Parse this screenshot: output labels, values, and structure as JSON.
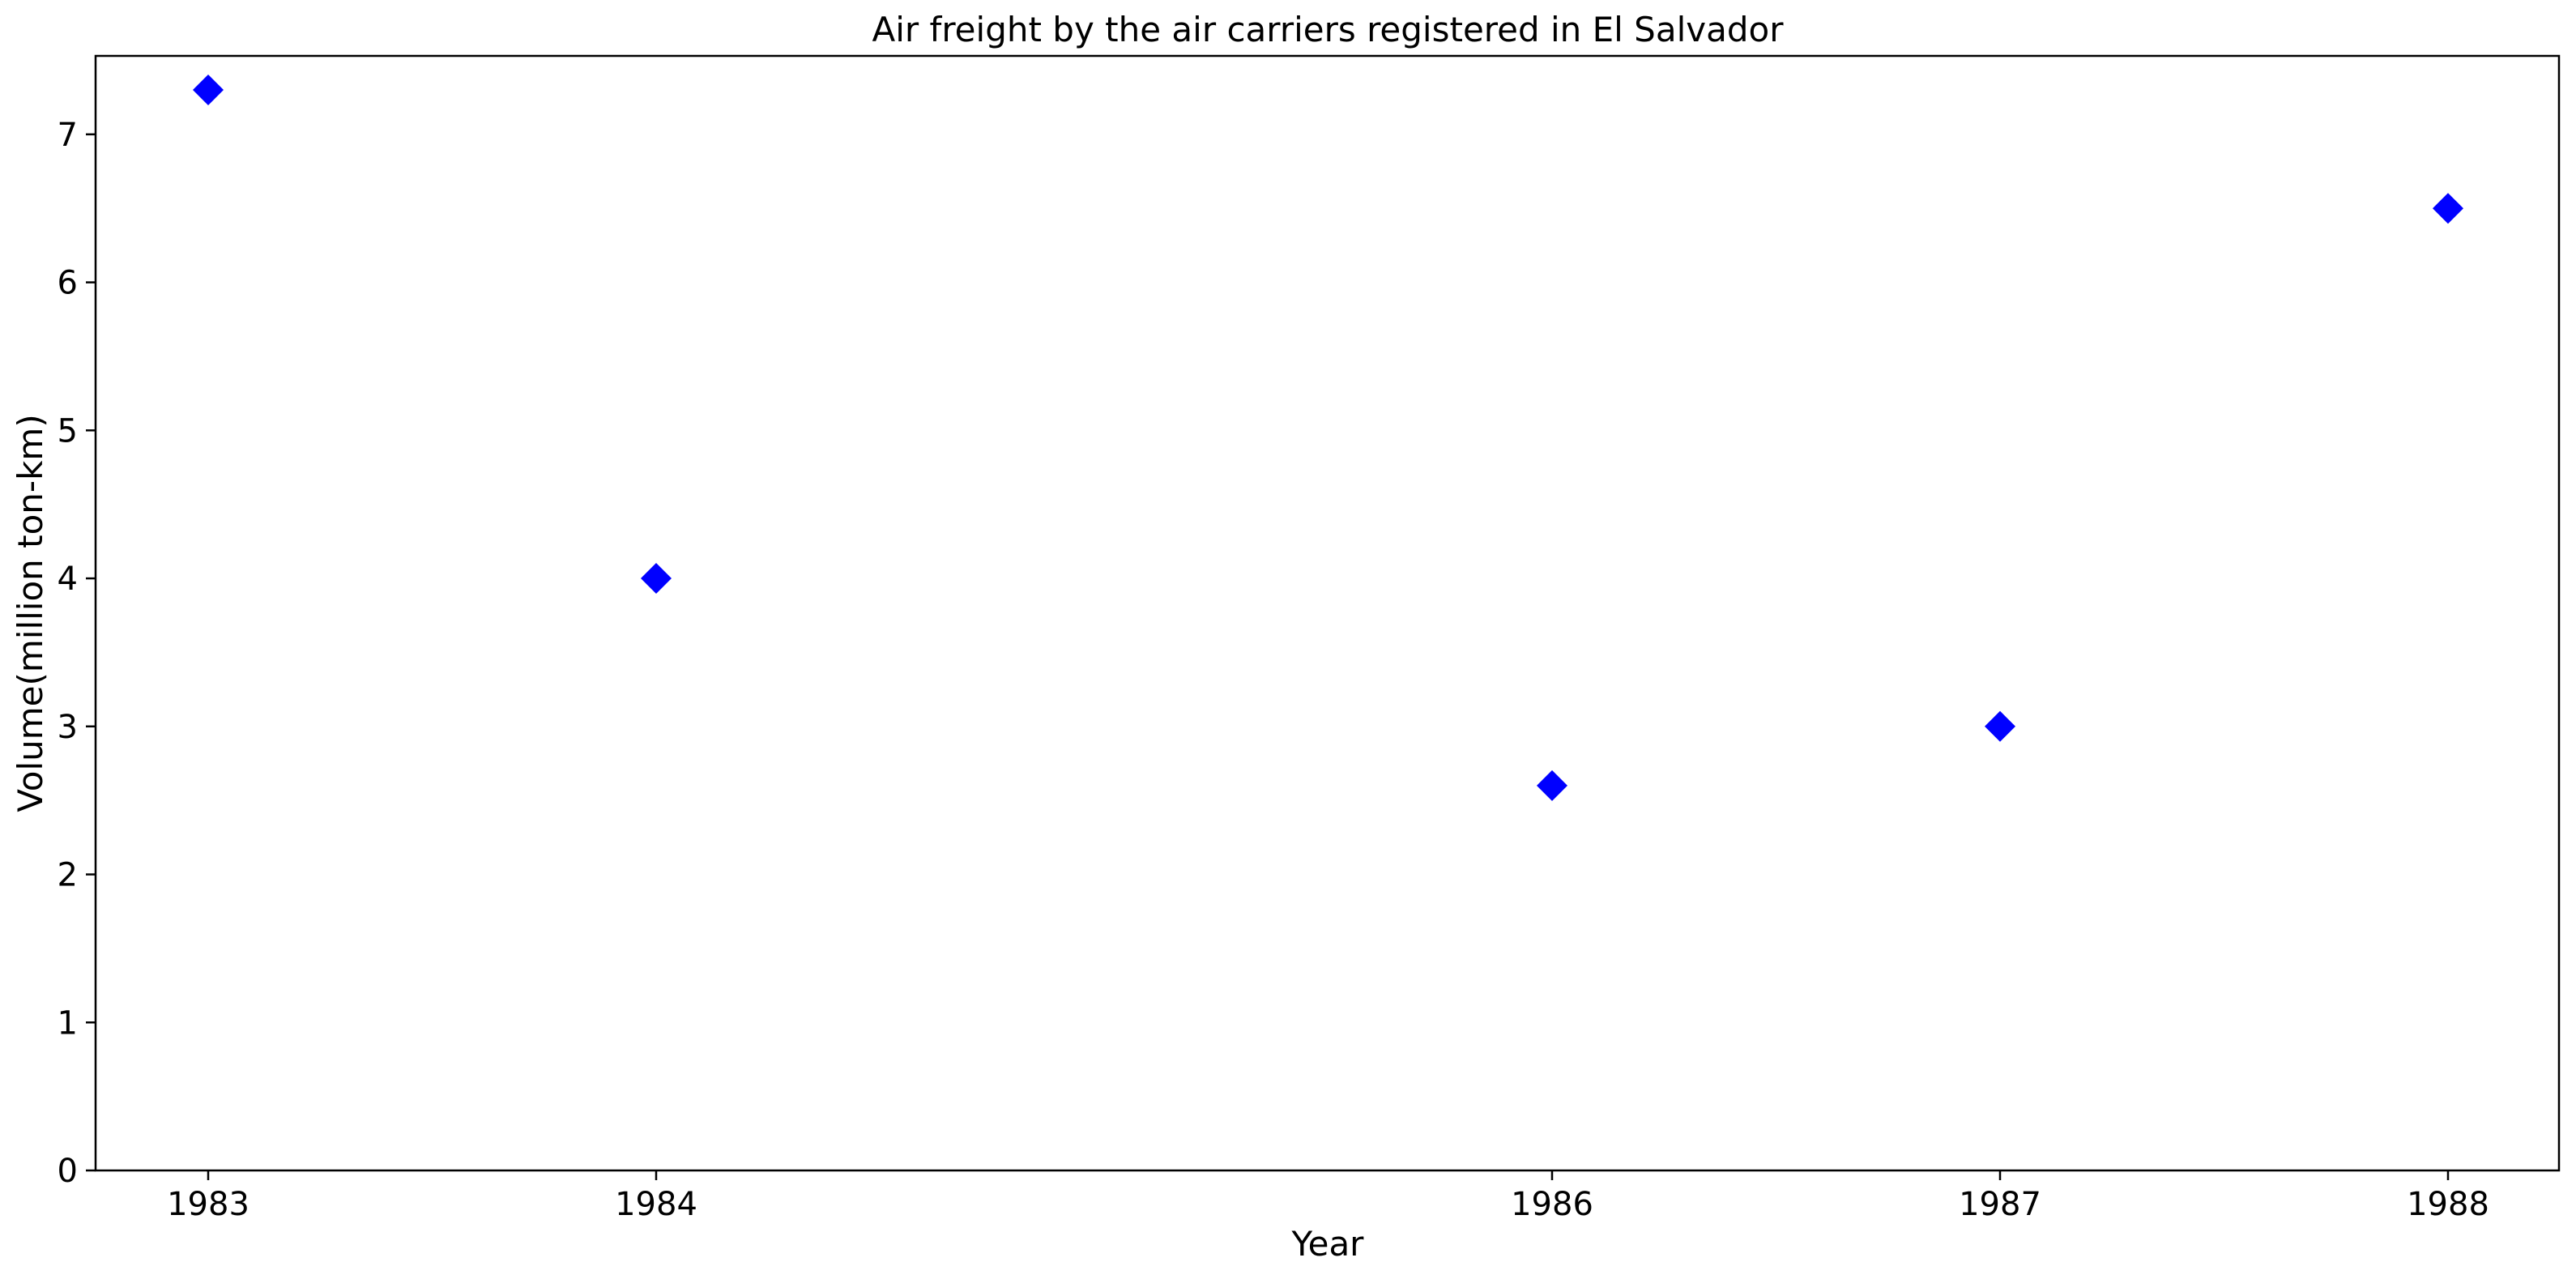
{
  "chart_data": {
    "type": "scatter",
    "title": "Air freight by the air carriers registered in El Salvador",
    "xlabel": "Year",
    "ylabel": "Volume(million ton-km)",
    "categories": [
      "1983",
      "1984",
      "1986",
      "1987",
      "1988"
    ],
    "values": [
      7.3,
      4.0,
      2.6,
      3.0,
      6.5
    ],
    "yticks": [
      "0",
      "1",
      "2",
      "3",
      "4",
      "5",
      "6",
      "7"
    ],
    "ylim": [
      0,
      7.53
    ],
    "grid": false,
    "legend": "none",
    "marker": "diamond",
    "marker_color": "#0000ff"
  }
}
